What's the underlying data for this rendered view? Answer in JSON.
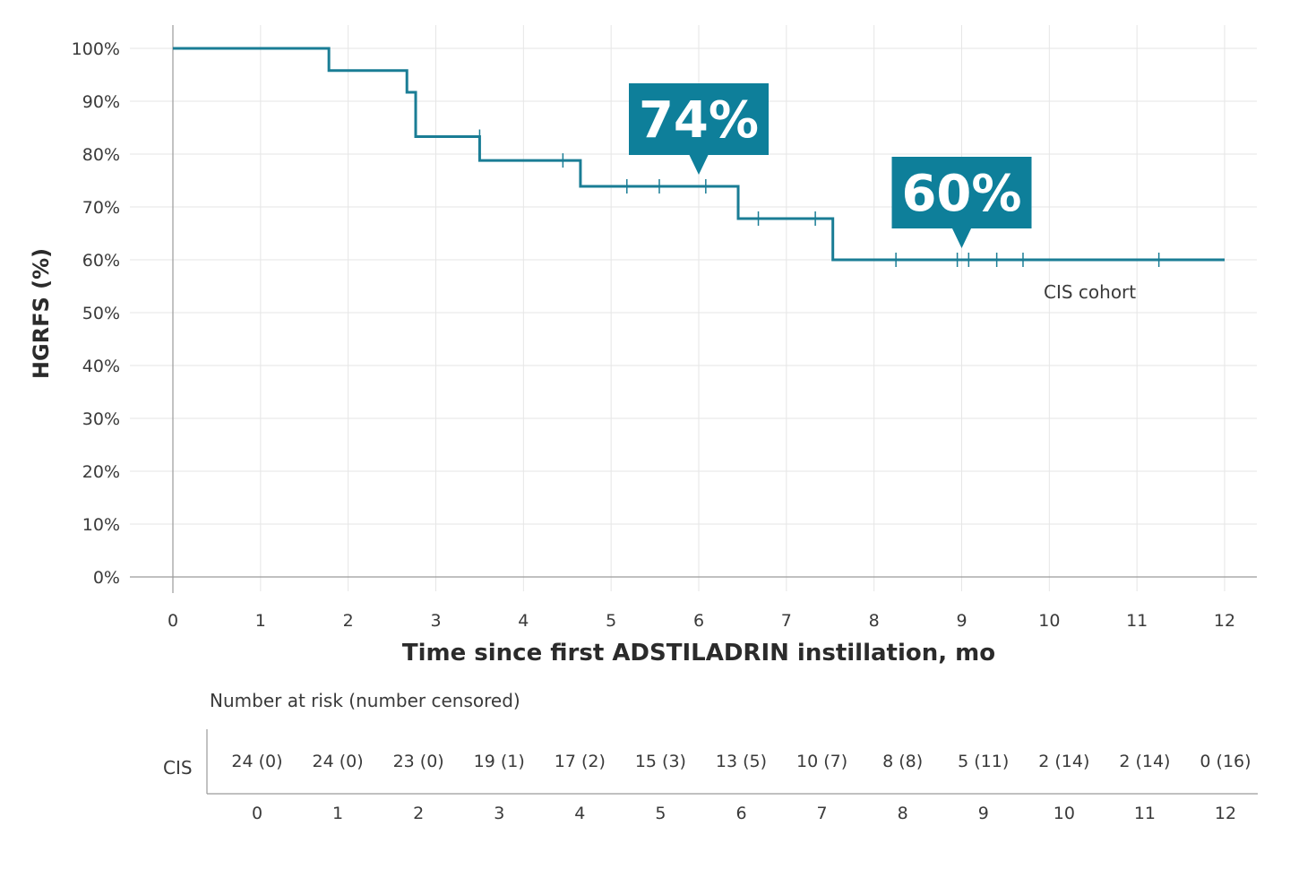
{
  "chart_data": {
    "type": "line",
    "step": true,
    "ylabel": "HGRFS (%)",
    "xlabel": "Time since first ADSTILADRIN instillation, mo",
    "xlim": [
      0,
      12
    ],
    "ylim": [
      0,
      100
    ],
    "x_ticks": [
      0,
      1,
      2,
      3,
      4,
      5,
      6,
      7,
      8,
      9,
      10,
      11,
      12
    ],
    "y_ticks": [
      0,
      10,
      20,
      30,
      40,
      50,
      60,
      70,
      80,
      90,
      100
    ],
    "y_tick_labels": [
      "0%",
      "10%",
      "20%",
      "30%",
      "40%",
      "50%",
      "60%",
      "70%",
      "80%",
      "90%",
      "100%"
    ],
    "grid": true,
    "series": [
      {
        "name": "CIS cohort",
        "color": "#1a7d95",
        "x": [
          0,
          1.78,
          2.67,
          2.77,
          3.5,
          4.65,
          6.45,
          7.53,
          12
        ],
        "y": [
          100,
          95.8,
          91.7,
          83.3,
          78.8,
          73.9,
          67.8,
          60.0,
          60.0
        ],
        "censored": [
          {
            "x": 3.5,
            "y": 83.3
          },
          {
            "x": 4.45,
            "y": 78.8
          },
          {
            "x": 5.18,
            "y": 73.9
          },
          {
            "x": 5.55,
            "y": 73.9
          },
          {
            "x": 6.08,
            "y": 73.9
          },
          {
            "x": 6.68,
            "y": 67.8
          },
          {
            "x": 7.33,
            "y": 67.8
          },
          {
            "x": 8.25,
            "y": 60.0
          },
          {
            "x": 8.95,
            "y": 60.0
          },
          {
            "x": 9.08,
            "y": 60.0
          },
          {
            "x": 9.4,
            "y": 60.0
          },
          {
            "x": 9.7,
            "y": 60.0
          },
          {
            "x": 11.25,
            "y": 60.0
          }
        ]
      }
    ],
    "annotations": [
      {
        "text": "74%",
        "x": 6,
        "y": 73.9,
        "style": "callout",
        "color": "#0e7f9a"
      },
      {
        "text": "60%",
        "x": 9,
        "y": 60.0,
        "style": "callout",
        "color": "#0e7f9a"
      },
      {
        "text": "CIS cohort",
        "style": "label"
      }
    ],
    "risk_table": {
      "title": "Number at risk (number censored)",
      "row_label": "CIS",
      "times": [
        0,
        1,
        2,
        3,
        4,
        5,
        6,
        7,
        8,
        9,
        10,
        11,
        12
      ],
      "values": [
        "24 (0)",
        "24 (0)",
        "23 (0)",
        "19 (1)",
        "17 (2)",
        "15 (3)",
        "13 (5)",
        "10 (7)",
        "8 (8)",
        "5 (11)",
        "2 (14)",
        "2 (14)",
        "0 (16)"
      ]
    }
  }
}
